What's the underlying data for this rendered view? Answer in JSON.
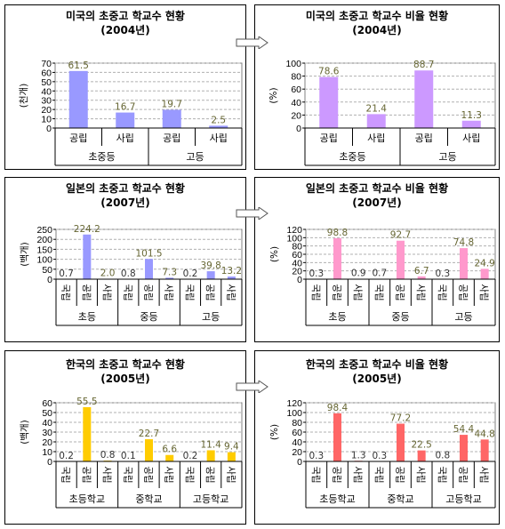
{
  "colors": {
    "us_count": "#9999ff",
    "us_ratio": "#cc99ff",
    "jp_count": "#9999ff",
    "jp_ratio": "#ff99cc",
    "kr_count": "#ffcc00",
    "kr_ratio": "#ff6666",
    "value_label": "#666633",
    "zero_label": "#333333",
    "grid": "#b0b0b0"
  },
  "arrow_icon": "right-arrow-icon",
  "chart_data": [
    {
      "id": "us-count",
      "type": "bar",
      "title": "미국의 초중고 학교수 현황",
      "subtitle": "(2004년)",
      "ylabel": "(천개)",
      "ylim": [
        0,
        70
      ],
      "yticks": [
        0,
        10,
        20,
        30,
        40,
        50,
        60,
        70
      ],
      "categories": [
        "공립",
        "사립",
        "공립",
        "사립"
      ],
      "groups": [
        {
          "label": "초중등",
          "size": 2
        },
        {
          "label": "고등",
          "size": 2
        }
      ],
      "values": [
        61.5,
        16.7,
        19.7,
        2.5
      ],
      "value_labels": [
        "61.5",
        "16.7",
        "19.7",
        "2.5"
      ],
      "grid": true,
      "color_key": "us_count"
    },
    {
      "id": "us-ratio",
      "type": "bar",
      "title": "미국의 초중고 학교수 비율 현황",
      "subtitle": "(2004년)",
      "ylabel": "(%)",
      "ylim": [
        0,
        100
      ],
      "yticks": [
        0,
        20,
        40,
        60,
        80,
        100
      ],
      "categories": [
        "공립",
        "사립",
        "공립",
        "사립"
      ],
      "groups": [
        {
          "label": "초중등",
          "size": 2
        },
        {
          "label": "고등",
          "size": 2
        }
      ],
      "values": [
        78.6,
        21.4,
        88.7,
        11.3
      ],
      "value_labels": [
        "78.6",
        "21.4",
        "88.7",
        "11.3"
      ],
      "grid": true,
      "color_key": "us_ratio"
    },
    {
      "id": "jp-count",
      "type": "bar",
      "title": "일본의 초중고 학교수 현황",
      "subtitle": "(2007년)",
      "ylabel": "(백개)",
      "ylim": [
        0,
        250
      ],
      "yticks": [
        0,
        50,
        100,
        150,
        200,
        250
      ],
      "categories": [
        "국립",
        "공립",
        "사립",
        "국립",
        "공립",
        "사립",
        "국립",
        "공립",
        "사립"
      ],
      "groups": [
        {
          "label": "초등",
          "size": 3
        },
        {
          "label": "중등",
          "size": 3
        },
        {
          "label": "고등",
          "size": 3
        }
      ],
      "values": [
        0.7,
        224.2,
        2.0,
        0.8,
        101.5,
        7.3,
        0.2,
        39.8,
        13.2
      ],
      "value_labels": [
        "0.7",
        "224.2",
        "2.0",
        "0.8",
        "101.5",
        "7.3",
        "0.2",
        "39.8",
        "13.2"
      ],
      "grid": true,
      "color_key": "jp_count"
    },
    {
      "id": "jp-ratio",
      "type": "bar",
      "title": "일본의 초중고 학교수 비율 현황",
      "subtitle": "(2007년)",
      "ylabel": "(%)",
      "ylim": [
        0,
        120
      ],
      "yticks": [
        0,
        20,
        40,
        60,
        80,
        100,
        120
      ],
      "categories": [
        "국립",
        "공립",
        "사립",
        "국립",
        "공립",
        "사립",
        "국립",
        "공립",
        "사립"
      ],
      "groups": [
        {
          "label": "초등",
          "size": 3
        },
        {
          "label": "중등",
          "size": 3
        },
        {
          "label": "고등",
          "size": 3
        }
      ],
      "values": [
        0.3,
        98.8,
        0.9,
        0.7,
        92.7,
        6.7,
        0.3,
        74.8,
        24.9
      ],
      "value_labels": [
        "0.3",
        "98.8",
        "0.9",
        "0.7",
        "92.7",
        "6.7",
        "0.3",
        "74.8",
        "24.9"
      ],
      "grid": true,
      "color_key": "jp_ratio"
    },
    {
      "id": "kr-count",
      "type": "bar",
      "title": "한국의 초중고 학교수 현황",
      "subtitle": "(2005년)",
      "ylabel": "(백개)",
      "ylim": [
        0,
        60
      ],
      "yticks": [
        0,
        10,
        20,
        30,
        40,
        50,
        60
      ],
      "categories": [
        "국립",
        "공립",
        "사립",
        "국립",
        "공립",
        "사립",
        "국립",
        "공립",
        "사립"
      ],
      "groups": [
        {
          "label": "초등학교",
          "size": 3
        },
        {
          "label": "중학교",
          "size": 3
        },
        {
          "label": "고등학교",
          "size": 3
        }
      ],
      "values": [
        0.2,
        55.5,
        0.8,
        0.1,
        22.7,
        6.6,
        0.2,
        11.4,
        9.4
      ],
      "value_labels": [
        "0.2",
        "55.5",
        "0.8",
        "0.1",
        "22.7",
        "6.6",
        "0.2",
        "11.4",
        "9.4"
      ],
      "grid": true,
      "color_key": "kr_count"
    },
    {
      "id": "kr-ratio",
      "type": "bar",
      "title": "한국의 초중고 학교수 비율 현황",
      "subtitle": "(2005년)",
      "ylabel": "(%)",
      "ylim": [
        0,
        120
      ],
      "yticks": [
        0,
        20,
        40,
        60,
        80,
        100,
        120
      ],
      "categories": [
        "국립",
        "공립",
        "사립",
        "국립",
        "공립",
        "사립",
        "국립",
        "공립",
        "사립"
      ],
      "groups": [
        {
          "label": "초등학교",
          "size": 3
        },
        {
          "label": "중학교",
          "size": 3
        },
        {
          "label": "고등학교",
          "size": 3
        }
      ],
      "values": [
        0.3,
        98.4,
        1.3,
        0.3,
        77.2,
        22.5,
        0.8,
        54.4,
        44.8
      ],
      "value_labels": [
        "0.3",
        "98.4",
        "1.3",
        "0.3",
        "77.2",
        "22.5",
        "0.8",
        "54.4",
        "44.8"
      ],
      "grid": true,
      "color_key": "kr_ratio"
    }
  ]
}
